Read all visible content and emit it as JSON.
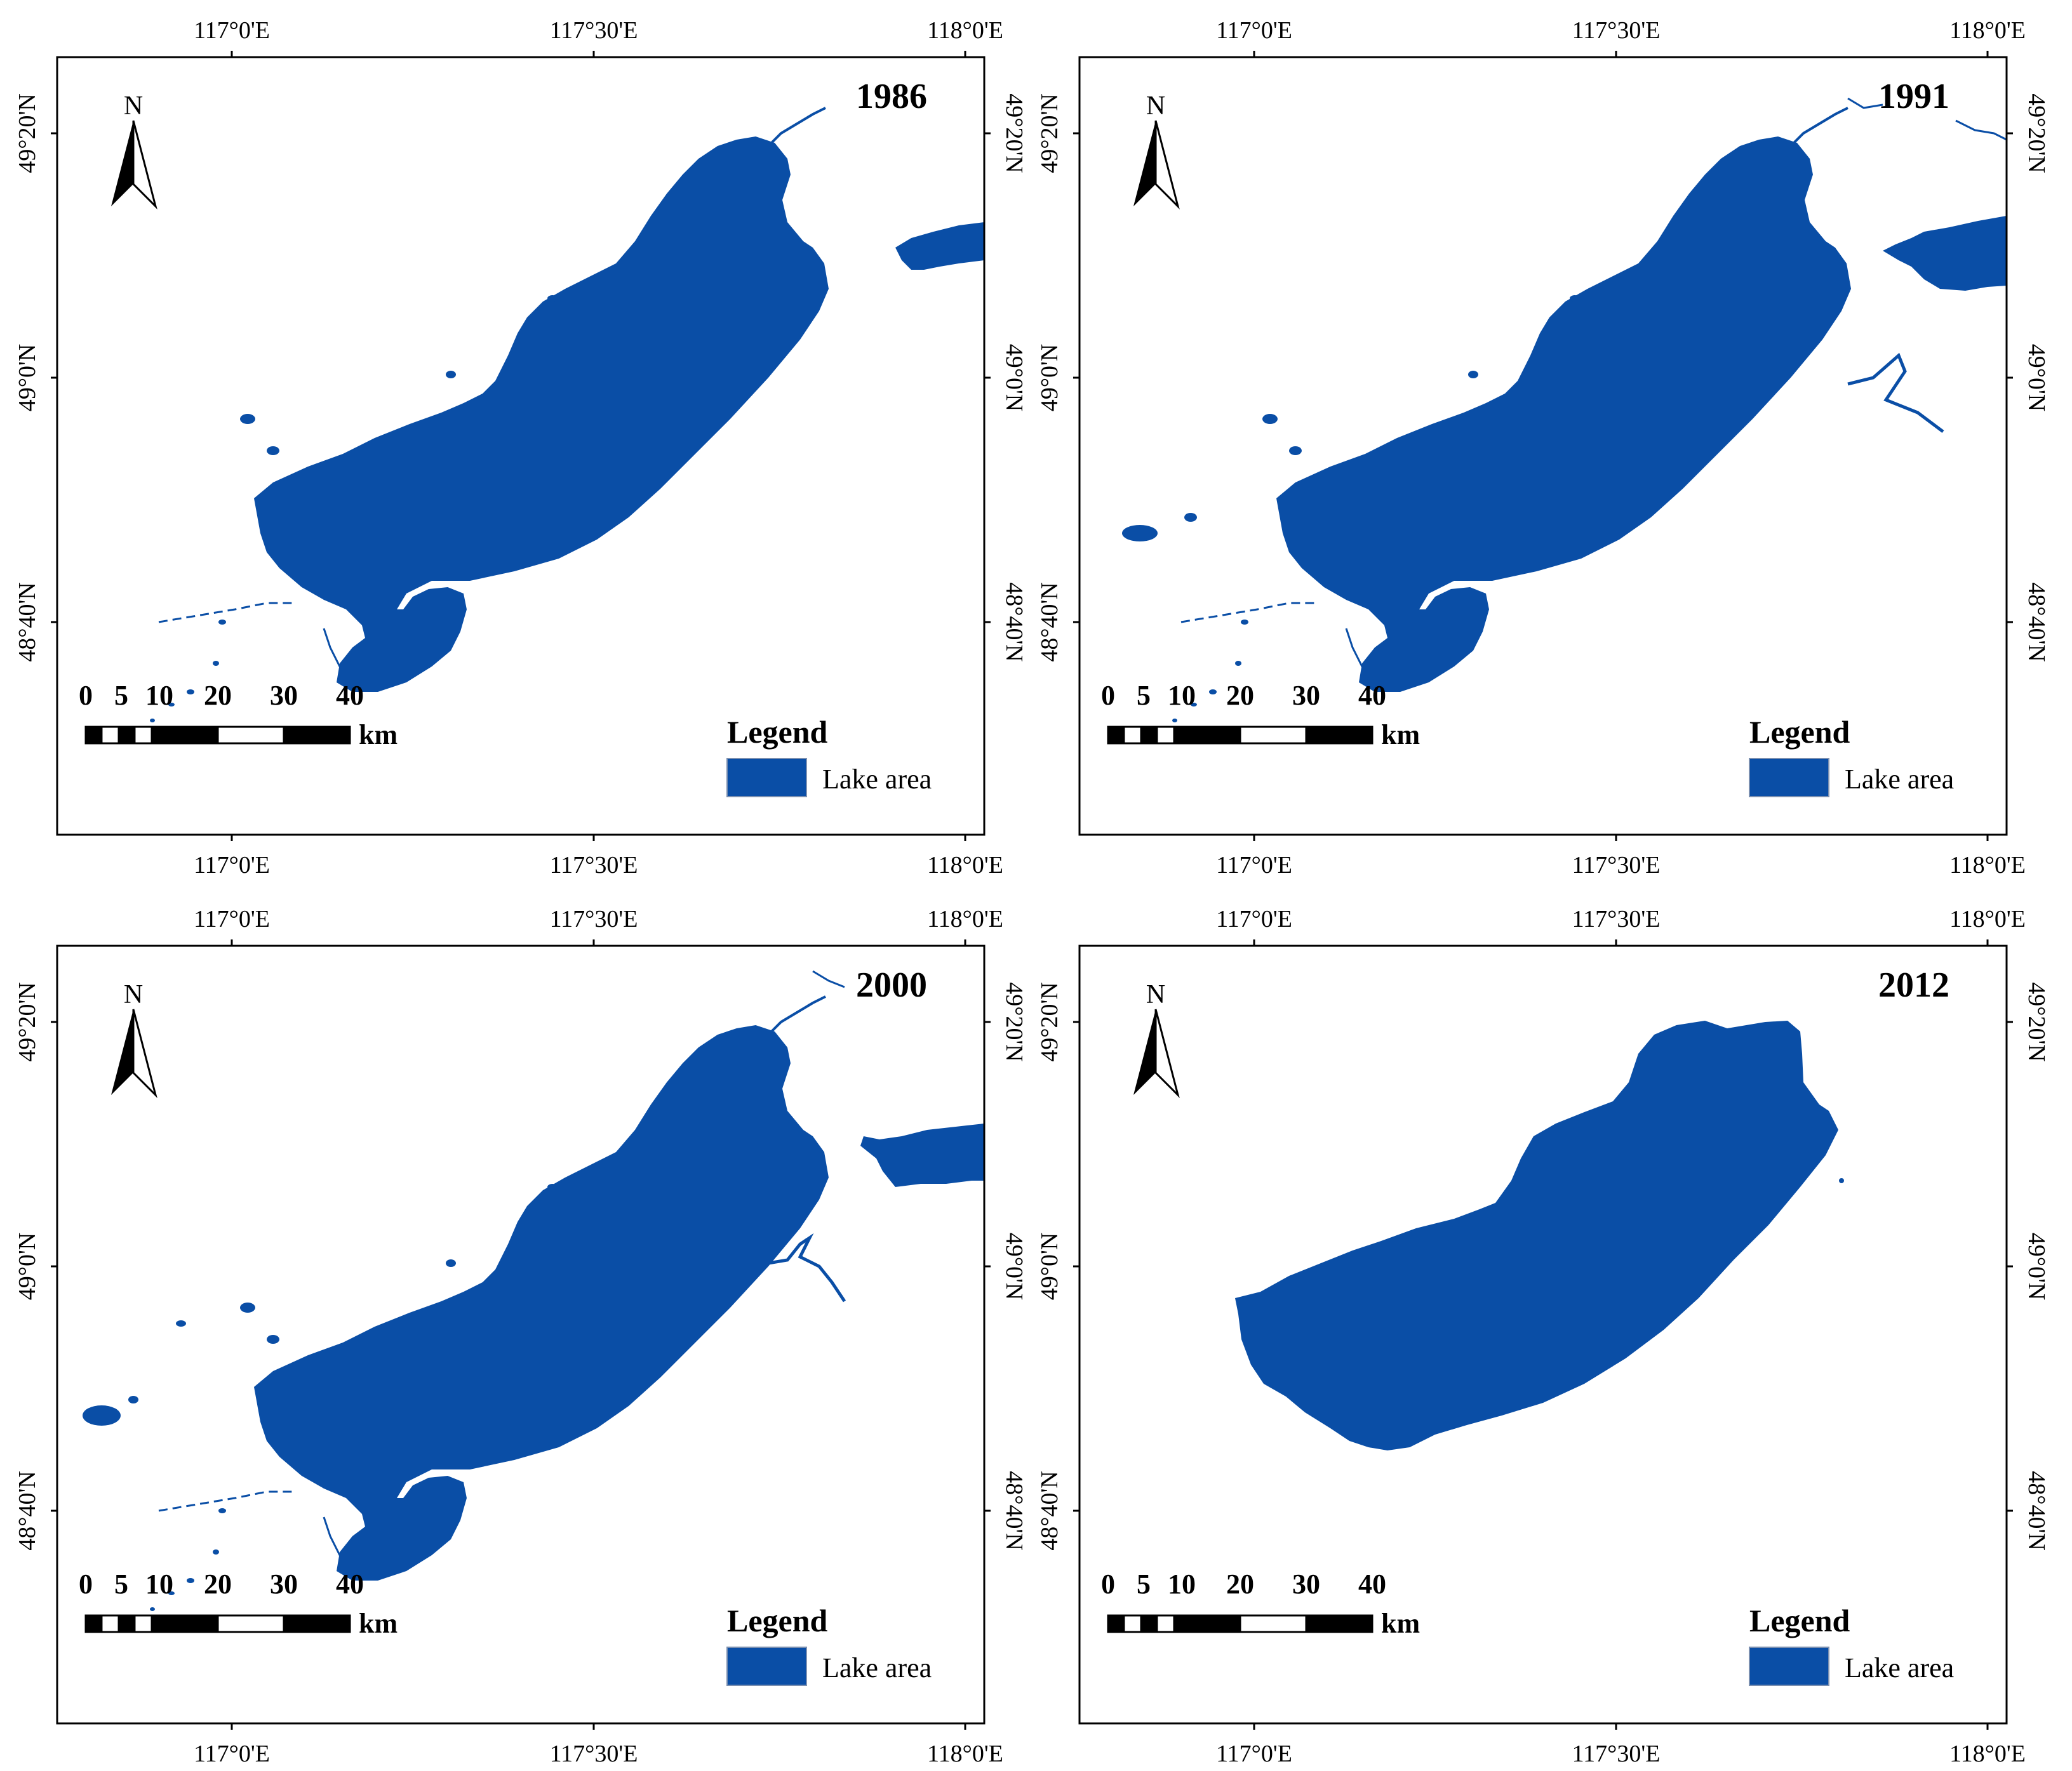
{
  "figure": {
    "panels": [
      {
        "year": "1986",
        "x_ticks": [
          "117°0'E",
          "117°30'E",
          "118°0'E"
        ],
        "y_ticks": [
          "49°20'N",
          "49°0'N",
          "48°40'N"
        ],
        "legend": {
          "title": "Legend",
          "item": "Lake area"
        },
        "scale_bar": {
          "ticks": [
            "0",
            "5",
            "10",
            "20",
            "30",
            "40"
          ],
          "unit": "km"
        },
        "north_arrow": "N"
      },
      {
        "year": "1991",
        "x_ticks": [
          "117°0'E",
          "117°30'E",
          "118°0'E"
        ],
        "y_ticks": [
          "49°20'N",
          "49°0'N",
          "48°40'N"
        ],
        "legend": {
          "title": "Legend",
          "item": "Lake area"
        },
        "scale_bar": {
          "ticks": [
            "0",
            "5",
            "10",
            "20",
            "30",
            "40"
          ],
          "unit": "km"
        },
        "north_arrow": "N"
      },
      {
        "year": "2000",
        "x_ticks": [
          "117°0'E",
          "117°30'E",
          "118°0'E"
        ],
        "y_ticks": [
          "49°20'N",
          "49°0'N",
          "48°40'N"
        ],
        "legend": {
          "title": "Legend",
          "item": "Lake area"
        },
        "scale_bar": {
          "ticks": [
            "0",
            "5",
            "10",
            "20",
            "30",
            "40"
          ],
          "unit": "km"
        },
        "north_arrow": "N"
      },
      {
        "year": "2012",
        "x_ticks": [
          "117°0'E",
          "117°30'E",
          "118°0'E"
        ],
        "y_ticks": [
          "49°20'N",
          "49°0'N",
          "48°40'N"
        ],
        "legend": {
          "title": "Legend",
          "item": "Lake area"
        },
        "scale_bar": {
          "ticks": [
            "0",
            "5",
            "10",
            "20",
            "30",
            "40"
          ],
          "unit": "km"
        },
        "north_arrow": "N"
      }
    ]
  },
  "colors": {
    "lake": "#0a4ea6",
    "frame": "#000000",
    "background": "#ffffff"
  }
}
